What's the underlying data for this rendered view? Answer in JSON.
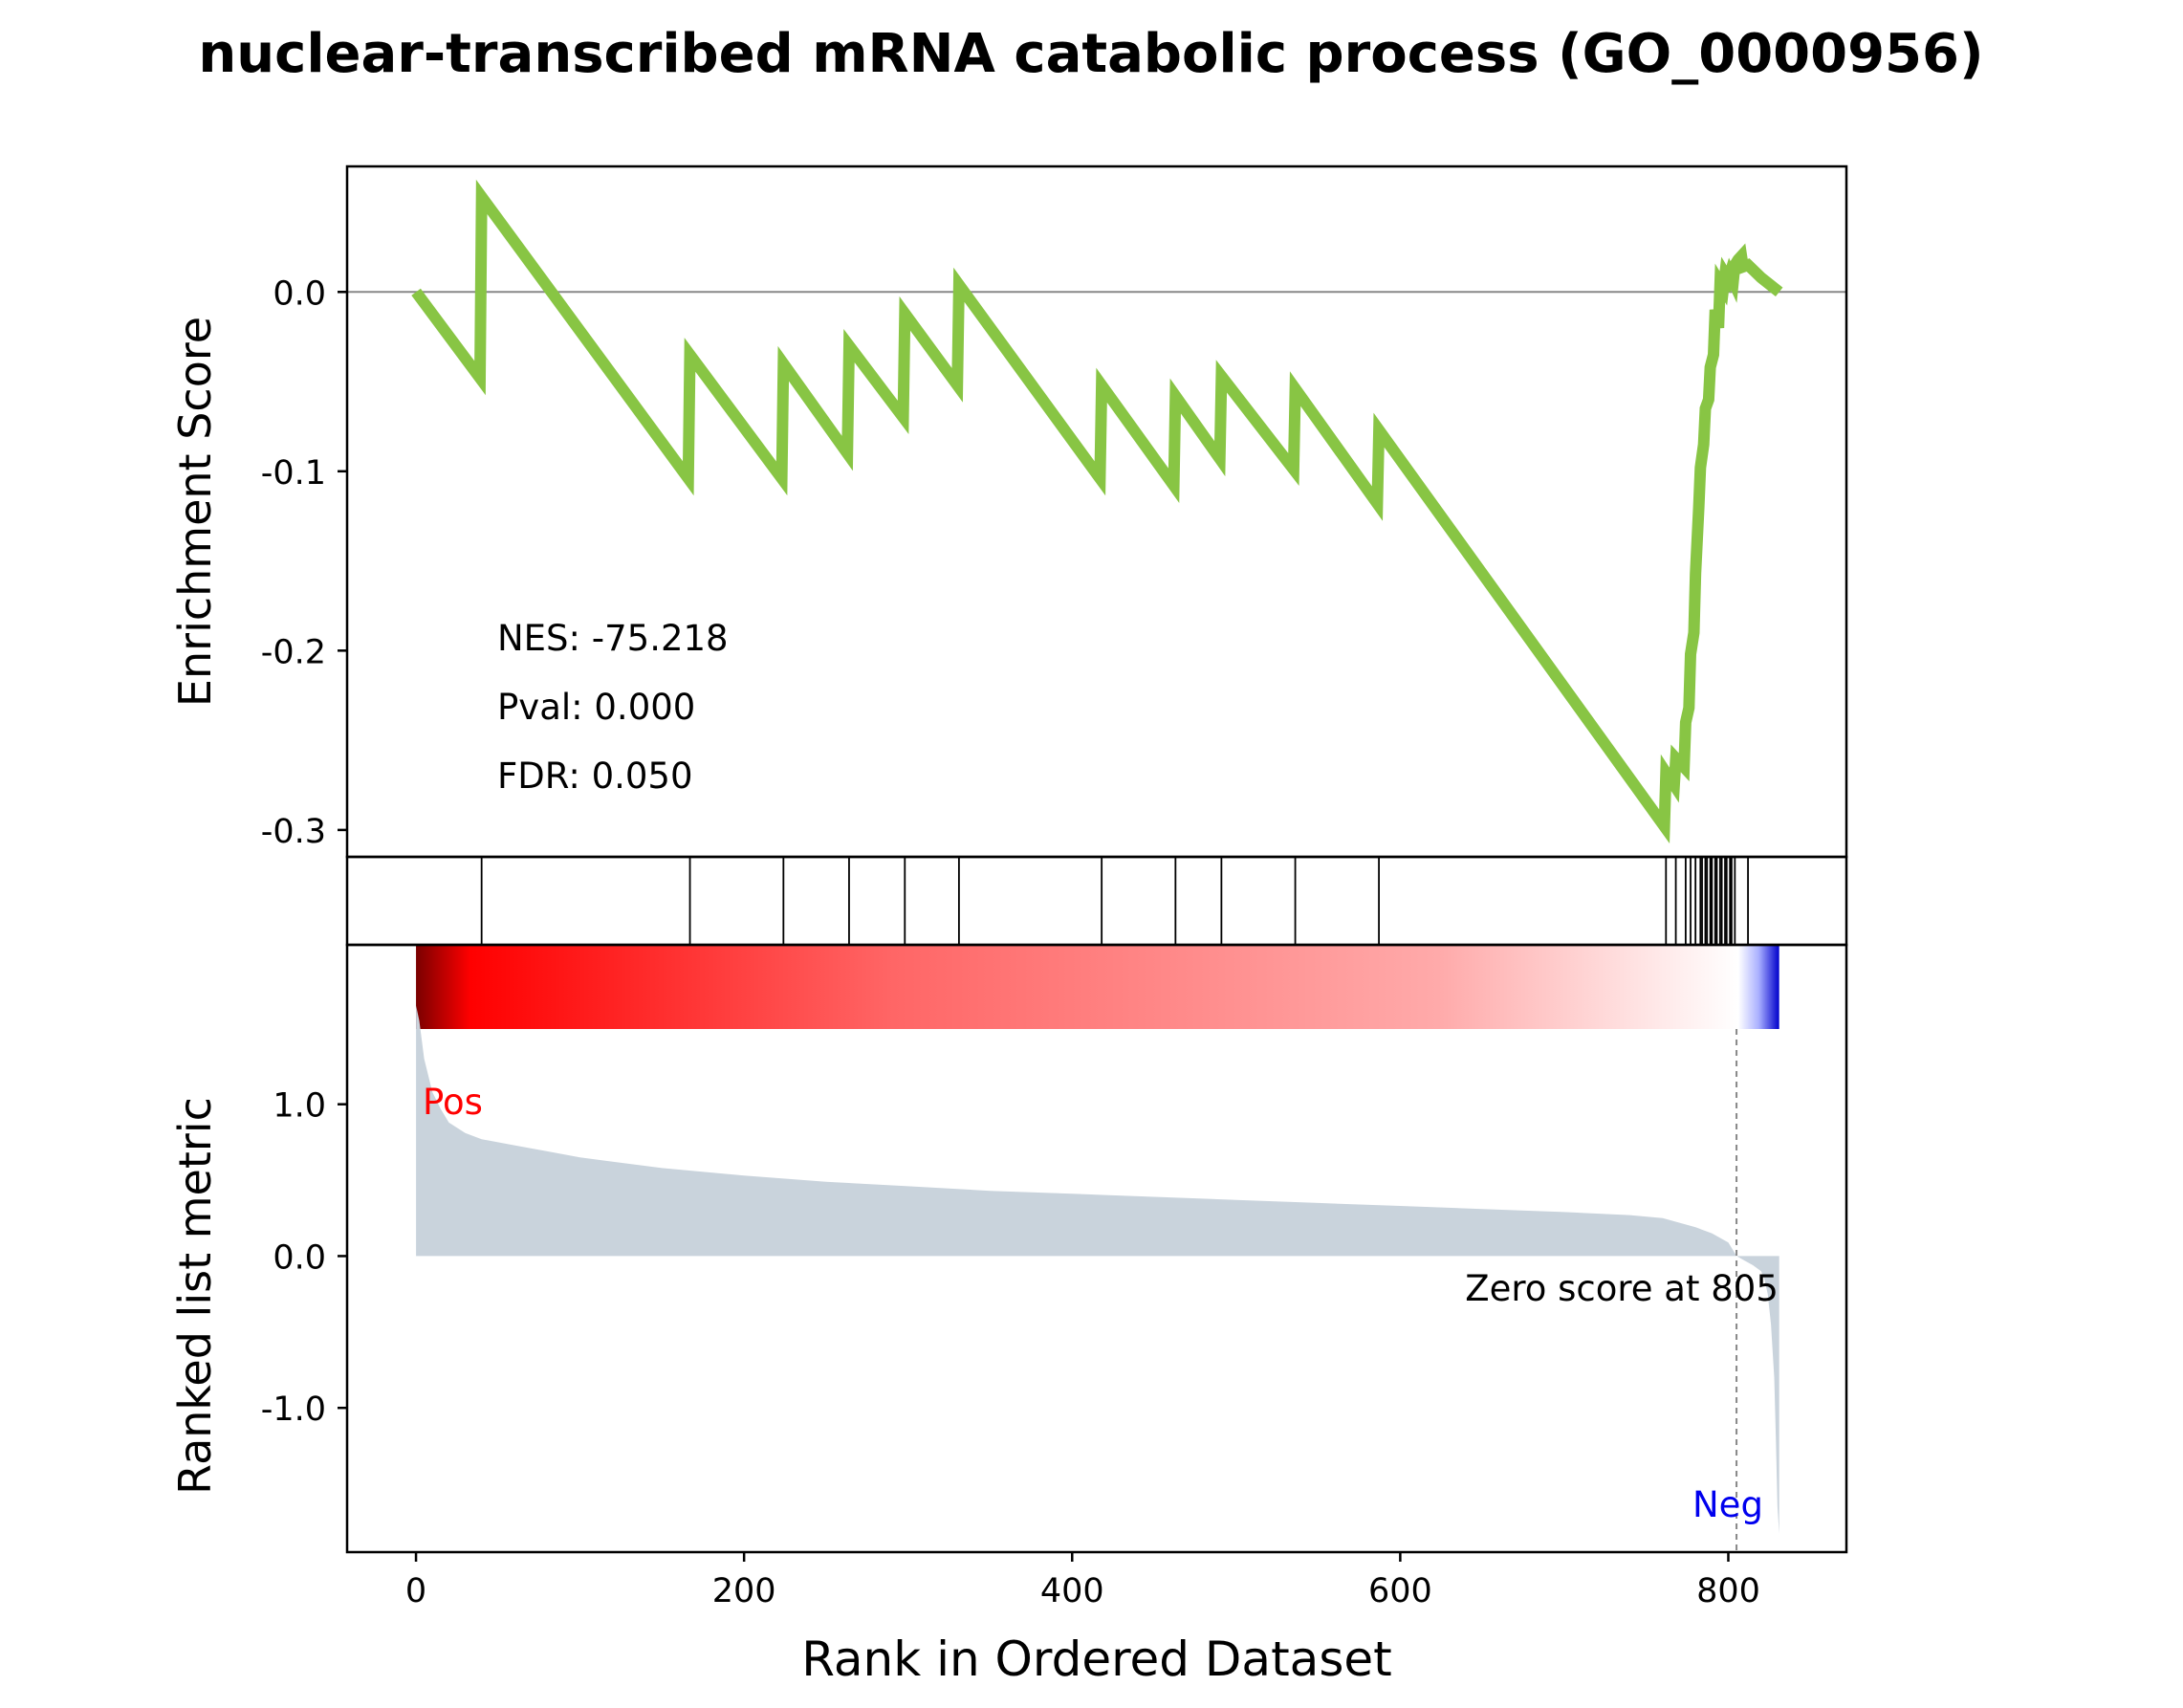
{
  "title": "nuclear-transcribed mRNA catabolic process (GO_0000956)",
  "colors": {
    "es_line": "#88c544",
    "metric_fill": "#c9d3dc",
    "pos_label": "#ff0000",
    "neg_label": "#0000ee",
    "zero_line": "#888888",
    "heatmap_high": "#ff0000",
    "heatmap_mid": "#ffffff",
    "heatmap_low": "#0000cc"
  },
  "chart_data": [
    {
      "type": "line",
      "panel": "enrichment",
      "ylabel": "Enrichment Score",
      "ylim": [
        -0.315,
        0.07
      ],
      "yticks": [
        0.0,
        -0.1,
        -0.2,
        -0.3
      ],
      "ytick_labels": [
        "0.0",
        "-0.1",
        "-0.2",
        "-0.3"
      ],
      "xlim": [
        -42,
        872
      ],
      "grid": false,
      "annotations": [
        "NES: -75.218",
        "Pval: 0.000",
        "FDR: 0.050"
      ],
      "x": [
        0,
        39,
        40,
        166,
        167,
        223,
        224,
        263,
        264,
        297,
        298,
        330,
        331,
        417,
        418,
        462,
        463,
        490,
        491,
        535,
        536,
        586,
        587,
        761,
        762,
        767,
        768,
        773,
        774,
        776,
        777,
        779,
        780,
        782,
        783,
        785,
        786,
        788,
        789,
        791,
        792,
        794,
        795,
        797,
        798,
        800,
        801,
        803,
        804,
        806,
        808,
        809,
        812,
        820,
        831
      ],
      "y": [
        0.0,
        -0.048,
        0.053,
        -0.104,
        -0.035,
        -0.104,
        -0.04,
        -0.09,
        -0.03,
        -0.07,
        -0.012,
        -0.052,
        0.004,
        -0.104,
        -0.052,
        -0.108,
        -0.058,
        -0.093,
        -0.047,
        -0.099,
        -0.054,
        -0.118,
        -0.077,
        -0.298,
        -0.268,
        -0.275,
        -0.26,
        -0.265,
        -0.24,
        -0.232,
        -0.202,
        -0.19,
        -0.157,
        -0.12,
        -0.098,
        -0.085,
        -0.065,
        -0.06,
        -0.042,
        -0.035,
        -0.01,
        -0.02,
        0.005,
        0.002,
        0.01,
        0.007,
        0.01,
        0.006,
        0.015,
        0.018,
        0.02,
        0.014,
        0.015,
        0.008,
        0.0
      ]
    },
    {
      "type": "hits",
      "panel": "gene-set-hits",
      "positions": [
        40,
        167,
        224,
        264,
        298,
        331,
        418,
        463,
        491,
        536,
        587,
        762,
        768,
        774,
        777,
        780,
        783,
        784,
        786,
        787,
        789,
        790,
        792,
        793,
        795,
        796,
        798,
        799,
        801,
        802,
        804,
        812
      ]
    },
    {
      "type": "area",
      "panel": "ranked-metric",
      "ylabel": "Ranked list metric",
      "xlabel": "Rank in Ordered Dataset",
      "ylim": [
        -1.95,
        2.05
      ],
      "yticks": [
        1.0,
        0.0,
        -1.0
      ],
      "ytick_labels": [
        "1.0",
        "0.0",
        "-1.0"
      ],
      "xlim": [
        -42,
        872
      ],
      "xticks": [
        0,
        200,
        400,
        600,
        800
      ],
      "xtick_labels": [
        "0",
        "200",
        "400",
        "600",
        "800"
      ],
      "x": [
        0,
        2,
        5,
        10,
        15,
        20,
        30,
        40,
        60,
        80,
        100,
        150,
        200,
        250,
        300,
        350,
        400,
        450,
        500,
        550,
        600,
        650,
        700,
        740,
        760,
        780,
        790,
        800,
        805,
        810,
        815,
        820,
        822,
        824,
        826,
        828,
        829,
        830,
        831
      ],
      "y": [
        1.65,
        1.55,
        1.3,
        1.08,
        0.97,
        0.88,
        0.81,
        0.77,
        0.73,
        0.69,
        0.65,
        0.58,
        0.53,
        0.49,
        0.46,
        0.43,
        0.41,
        0.39,
        0.37,
        0.35,
        0.33,
        0.31,
        0.29,
        0.27,
        0.25,
        0.19,
        0.15,
        0.09,
        0.0,
        -0.03,
        -0.06,
        -0.1,
        -0.15,
        -0.25,
        -0.45,
        -0.8,
        -1.2,
        -1.65,
        -1.83
      ],
      "zero_cross": 805,
      "zero_label": "Zero score at 805",
      "pos_label": "Pos",
      "neg_label": "Neg"
    }
  ]
}
